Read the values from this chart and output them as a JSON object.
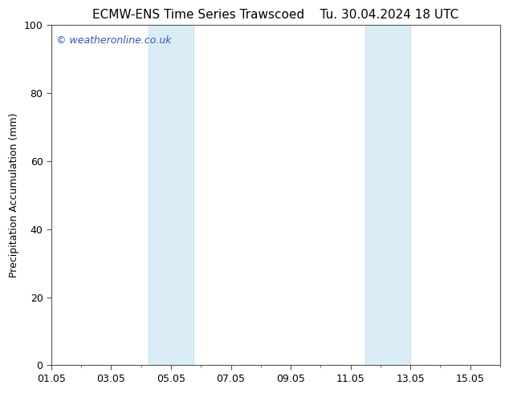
{
  "title_left": "ECMW-ENS Time Series Trawscoed",
  "title_right": "Tu. 30.04.2024 18 UTC",
  "ylabel": "Precipitation Accumulation (mm)",
  "ylim": [
    0,
    100
  ],
  "yticks": [
    0,
    20,
    40,
    60,
    80,
    100
  ],
  "x_min": 1.0,
  "x_max": 16.0,
  "x_tick_positions": [
    1,
    3,
    5,
    7,
    9,
    11,
    13,
    15
  ],
  "x_tick_labels": [
    "01.05",
    "03.05",
    "05.05",
    "07.05",
    "09.05",
    "11.05",
    "13.05",
    "15.05"
  ],
  "shaded_regions": [
    {
      "x_start": 4.25,
      "x_end": 5.75
    },
    {
      "x_start": 11.5,
      "x_end": 13.0
    }
  ],
  "shade_color": "#daedf7",
  "shade_edge_color": "#b8d8ee",
  "background_color": "#ffffff",
  "plot_bg_color": "#ffffff",
  "watermark_text": "© weatheronline.co.uk",
  "watermark_color": "#3355bb",
  "title_fontsize": 11,
  "axis_label_fontsize": 9,
  "tick_fontsize": 9,
  "watermark_fontsize": 9,
  "spine_color": "#555555",
  "title_gap": "    "
}
